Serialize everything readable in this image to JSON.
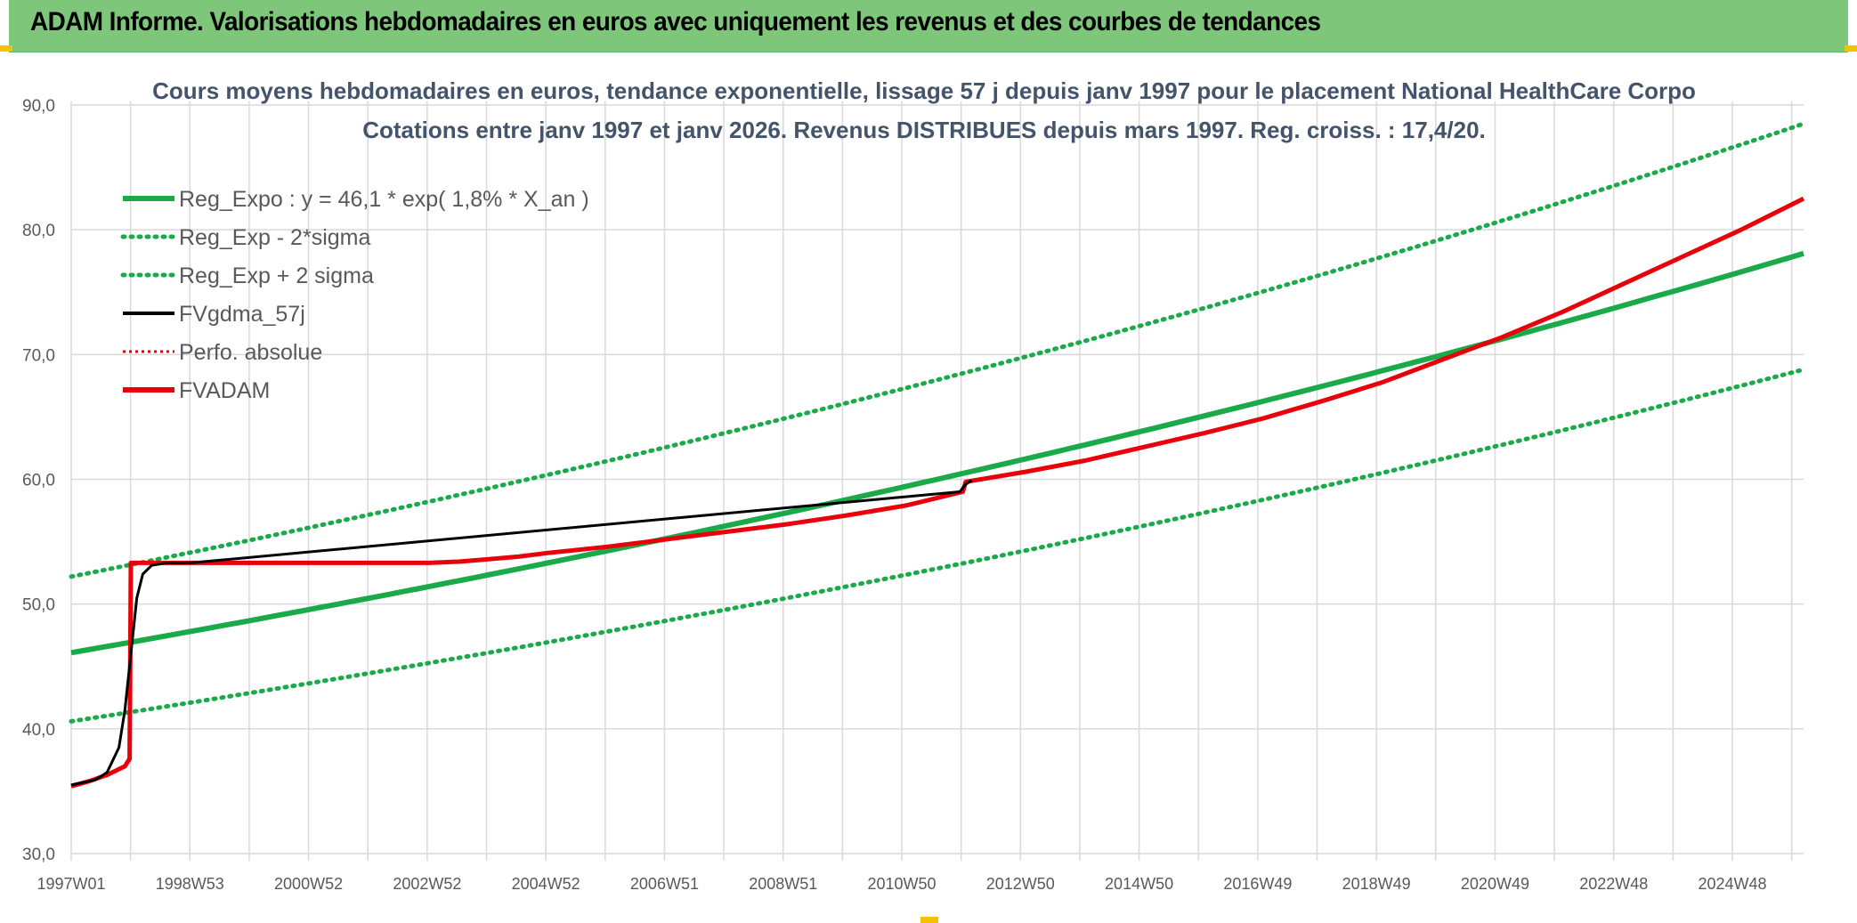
{
  "banner": {
    "title": "ADAM Informe. Valorisations hebdomadaires en euros avec uniquement les revenus et des courbes de tendances"
  },
  "colors": {
    "banner_bg": "#7dc67a",
    "green": "#1aaa4a",
    "red": "#e8000b",
    "black": "#000000",
    "grid": "#d9d9d9",
    "title": "#44546a"
  },
  "chart_data": {
    "type": "line",
    "title_line1": "Cours moyens hebdomadaires en euros, tendance exponentielle, lissage 57 j depuis janv 1997 pour le placement National HealthCare Corpo",
    "title_line2": "Cotations entre janv 1997 et janv 2026. Revenus DISTRIBUES depuis mars 1997. Reg. croiss. : 17,4/20.",
    "y_ticks": [
      "90,0",
      "80,0",
      "70,0",
      "60,0",
      "50,0",
      "40,0",
      "30,0"
    ],
    "x_ticks": [
      "1997W01",
      "1998W53",
      "2000W52",
      "2002W52",
      "2004W52",
      "2006W51",
      "2008W51",
      "2010W50",
      "2012W50",
      "2014W50",
      "2016W49",
      "2018W49",
      "2020W49",
      "2022W48",
      "2024W48"
    ],
    "ylim": [
      30,
      90
    ],
    "xlim": [
      1997.0,
      2026.05
    ],
    "grid": true,
    "legend_position": "top-left",
    "legend": [
      {
        "label": "Reg_Expo : y = 46,1 * exp( 1,8% *  X_an )",
        "style": "solid-green"
      },
      {
        "label": "Reg_Exp - 2*sigma",
        "style": "dotted-green"
      },
      {
        "label": "Reg_Exp + 2 sigma",
        "style": "dotted-green"
      },
      {
        "label": "FVgdma_57j",
        "style": "solid-black"
      },
      {
        "label": "Perfo. absolue",
        "style": "dotted-red"
      },
      {
        "label": "FVADAM",
        "style": "solid-red"
      }
    ],
    "series": [
      {
        "name": "Reg_Expo : y = 46,1 * exp( 1,8% *  X_an )",
        "x": [
          1997.0,
          2026.05
        ],
        "y": [
          46.1,
          78.1
        ],
        "curve": "exponential"
      },
      {
        "name": "Reg_Exp - 2*sigma",
        "x": [
          1997.0,
          2026.05
        ],
        "y": [
          40.6,
          68.8
        ],
        "curve": "exponential"
      },
      {
        "name": "Reg_Exp + 2 sigma",
        "x": [
          1997.0,
          2026.05
        ],
        "y": [
          52.2,
          88.5
        ],
        "curve": "exponential"
      },
      {
        "name": "FVADAM",
        "x": [
          1997.0,
          1997.3,
          1997.6,
          1997.9,
          1997.98,
          1998.0,
          1998.1,
          1998.5,
          1999.0,
          2003.0,
          2003.5,
          2004.0,
          2004.5,
          2005.0,
          2006.0,
          2007.0,
          2008.0,
          2009.0,
          2010.0,
          2011.0,
          2011.95,
          2012.0,
          2013.0,
          2014.0,
          2015.0,
          2016.0,
          2017.0,
          2018.0,
          2019.0,
          2020.0,
          2021.0,
          2022.0,
          2023.0,
          2024.0,
          2025.0,
          2026.05
        ],
        "y": [
          35.4,
          35.8,
          36.3,
          37.0,
          37.6,
          53.3,
          53.3,
          53.3,
          53.3,
          53.3,
          53.4,
          53.6,
          53.8,
          54.1,
          54.6,
          55.2,
          55.8,
          56.4,
          57.1,
          57.9,
          59.0,
          59.8,
          60.6,
          61.5,
          62.6,
          63.7,
          64.9,
          66.3,
          67.8,
          69.6,
          71.4,
          73.4,
          75.6,
          77.8,
          80.0,
          82.5
        ]
      },
      {
        "name": "FVgdma_57j",
        "x": [
          1997.0,
          1997.4,
          1997.6,
          1997.8,
          1997.9,
          1998.0,
          1998.1,
          1998.2,
          1998.35,
          1998.6,
          1999.0,
          2011.9,
          2012.0,
          2012.1
        ],
        "y": [
          35.5,
          35.9,
          36.5,
          38.5,
          41.5,
          46.0,
          50.5,
          52.4,
          53.1,
          53.3,
          53.3,
          59.0,
          59.6,
          59.9
        ]
      }
    ]
  }
}
